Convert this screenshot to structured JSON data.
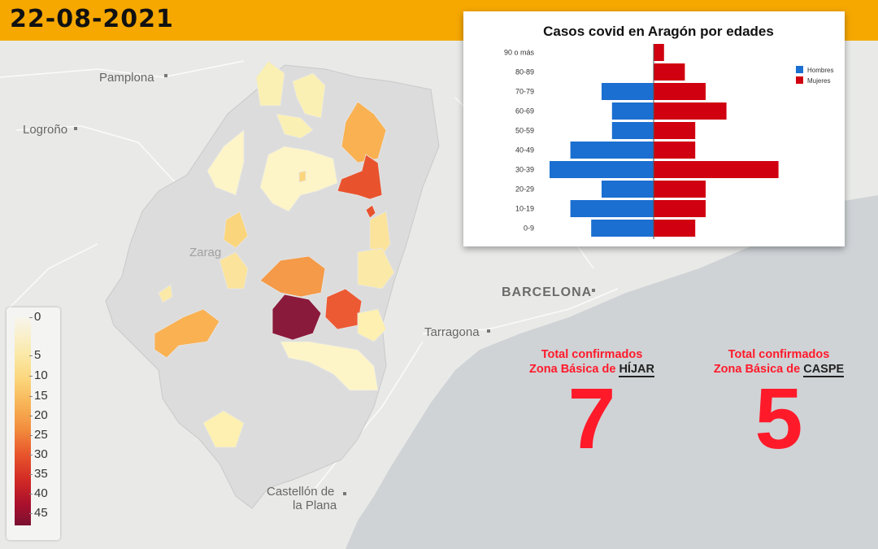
{
  "header": {
    "date": "22-08-2021"
  },
  "map": {
    "cities": [
      {
        "name": "Pamplona"
      },
      {
        "name": "Logroño"
      },
      {
        "name": "BARCELONA"
      },
      {
        "name": "Tarragona"
      },
      {
        "name": "Castellón de"
      },
      {
        "name": "la Plana"
      },
      {
        "name": "Zarag"
      }
    ]
  },
  "legend": {
    "ticks": [
      "0",
      "5",
      "10",
      "15",
      "20",
      "25",
      "30",
      "35",
      "40",
      "45"
    ]
  },
  "chart_data": {
    "type": "bar",
    "title": "Casos covid en Aragón por edades",
    "categories": [
      "90 o más",
      "80-89",
      "70-79",
      "60-69",
      "50-59",
      "40-49",
      "30-39",
      "20-29",
      "10-19",
      "0-9"
    ],
    "series": [
      {
        "name": "Hombres",
        "color": "#1b6fd0",
        "values": [
          0,
          0,
          5,
          4,
          4,
          8,
          10,
          5,
          8,
          6
        ]
      },
      {
        "name": "Mujeres",
        "color": "#d00010",
        "values": [
          1,
          3,
          5,
          7,
          4,
          4,
          12,
          5,
          5,
          4
        ]
      }
    ],
    "xlim": [
      -10,
      12
    ],
    "legend_position": "top-right"
  },
  "stats": [
    {
      "line1": "Total confirmados",
      "line2": "Zona Básica de",
      "zone": "HÍJAR",
      "value": "7"
    },
    {
      "line1": "Total confirmados",
      "line2": "Zona Básica de",
      "zone": "CASPE",
      "value": "5"
    }
  ]
}
